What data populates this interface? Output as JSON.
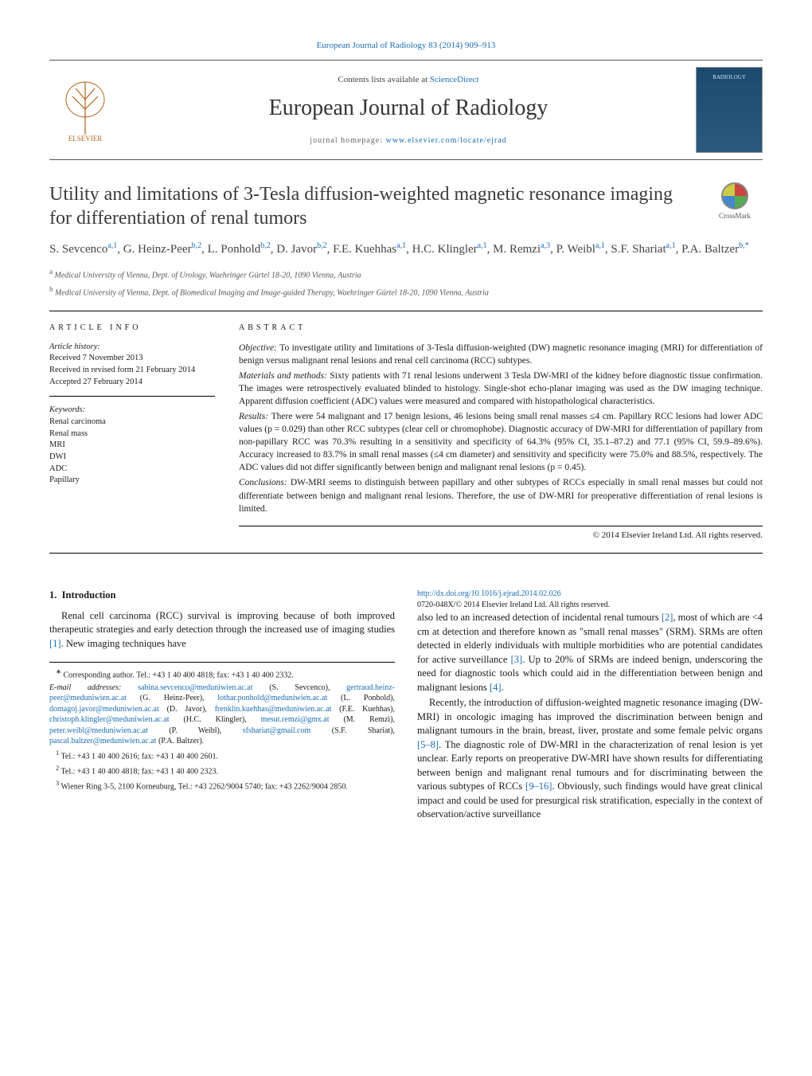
{
  "journal_ref": {
    "text_before": "",
    "link_text": "European Journal of Radiology 83 (2014) 909–913",
    "href": "#"
  },
  "masthead": {
    "contents_prefix": "Contents lists available at ",
    "contents_link": "ScienceDirect",
    "journal_title": "European Journal of Radiology",
    "homepage_prefix": "journal homepage: ",
    "homepage_link": "www.elsevier.com/locate/ejrad",
    "cover_label": "RADIOLOGY",
    "elsevier_label": "ELSEVIER"
  },
  "article": {
    "title": "Utility and limitations of 3-Tesla diffusion-weighted magnetic resonance imaging for differentiation of renal tumors",
    "crossmark_label": "CrossMark"
  },
  "authors_html": "S. Sevcenco<sup>a,1</sup>, G. Heinz-Peer<sup>b,2</sup>, L. Ponhold<sup>b,2</sup>, D. Javor<sup>b,2</sup>, F.E. Kuehhas<sup>a,1</sup>, H.C. Klingler<sup>a,1</sup>, M. Remzi<sup>a,3</sup>, P. Weibl<sup>a,1</sup>, S.F. Shariat<sup>a,1</sup>, P.A. Baltzer<sup>b,*</sup>",
  "affiliations": [
    {
      "sup": "a",
      "text": "Medical University of Vienna, Dept. of Urology, Waehringer Gürtel 18-20, 1090 Vienna, Austria"
    },
    {
      "sup": "b",
      "text": "Medical University of Vienna, Dept. of Biomedical Imaging and Image-guided Therapy, Waehringer Gürtel 18-20, 1090 Vienna, Austria"
    }
  ],
  "article_info": {
    "heading": "article info",
    "history_label": "Article history:",
    "history": [
      "Received 7 November 2013",
      "Received in revised form 21 February 2014",
      "Accepted 27 February 2014"
    ],
    "keywords_label": "Keywords:",
    "keywords": [
      "Renal carcinoma",
      "Renal mass",
      "MRI",
      "DWI",
      "ADC",
      "Papillary"
    ]
  },
  "abstract": {
    "heading": "abstract",
    "sections": [
      {
        "label": "Objective:",
        "text": "To investigate utility and limitations of 3-Tesla diffusion-weighted (DW) magnetic resonance imaging (MRI) for differentiation of benign versus malignant renal lesions and renal cell carcinoma (RCC) subtypes."
      },
      {
        "label": "Materials and methods:",
        "text": "Sixty patients with 71 renal lesions underwent 3 Tesla DW-MRI of the kidney before diagnostic tissue confirmation. The images were retrospectively evaluated blinded to histology. Single-shot echo-planar imaging was used as the DW imaging technique. Apparent diffusion coefficient (ADC) values were measured and compared with histopathological characteristics."
      },
      {
        "label": "Results:",
        "text": "There were 54 malignant and 17 benign lesions, 46 lesions being small renal masses ≤4 cm. Papillary RCC lesions had lower ADC values (p = 0.029) than other RCC subtypes (clear cell or chromophobe). Diagnostic accuracy of DW-MRI for differentiation of papillary from non-papillary RCC was 70.3% resulting in a sensitivity and specificity of 64.3% (95% CI, 35.1–87.2) and 77.1 (95% CI, 59.9–89.6%). Accuracy increased to 83.7% in small renal masses (≤4 cm diameter) and sensitivity and specificity were 75.0% and 88.5%, respectively. The ADC values did not differ significantly between benign and malignant renal lesions (p = 0.45)."
      },
      {
        "label": "Conclusions:",
        "text": "DW-MRI seems to distinguish between papillary and other subtypes of RCCs especially in small renal masses but could not differentiate between benign and malignant renal lesions. Therefore, the use of DW-MRI for preoperative differentiation of renal lesions is limited."
      }
    ],
    "copyright": "© 2014 Elsevier Ireland Ltd. All rights reserved."
  },
  "body": {
    "section_number": "1.",
    "section_title": "Introduction",
    "para1_a": "Renal cell carcinoma (RCC) survival is improving because of both improved therapeutic strategies and early detection through the increased use of imaging studies ",
    "ref1": "[1]",
    "para1_b": ". New imaging techniques have",
    "para2_a": "also led to an increased detection of incidental renal tumours ",
    "ref2": "[2]",
    "para2_b": ", most of which are <4 cm at detection and therefore known as \"small renal masses\" (SRM). SRMs are often detected in elderly individuals with multiple morbidities who are potential candidates for active surveillance ",
    "ref3": "[3]",
    "para2_c": ". Up to 20% of SRMs are indeed benign, underscoring the need for diagnostic tools which could aid in the differentiation between benign and malignant lesions ",
    "ref4": "[4]",
    "para2_d": ".",
    "para3_a": "Recently, the introduction of diffusion-weighted magnetic resonance imaging (DW-MRI) in oncologic imaging has improved the discrimination between benign and malignant tumours in the brain, breast, liver, prostate and some female pelvic organs ",
    "ref5": "[5–8]",
    "para3_b": ". The diagnostic role of DW-MRI in the characterization of renal lesion is yet unclear. Early reports on preoperative DW-MRI have shown results for differentiating between benign and malignant renal tumours and for discriminating between the various subtypes of RCCs ",
    "ref6": "[9–16]",
    "para3_c": ". Obviously, such findings would have great clinical impact and could be used for presurgical risk stratification, especially in the context of observation/active surveillance"
  },
  "footnotes": {
    "corr_label": "∗",
    "corr_text": "Corresponding author. Tel.: +43 1 40 400 4818; fax: +43 1 40 400 2332.",
    "email_label": "E-mail addresses:",
    "emails": [
      {
        "addr": "sabina.sevcenco@meduniwien.ac.at",
        "name": "(S. Sevcenco)"
      },
      {
        "addr": "gertraud.heinz-peer@meduniwien.ac.at",
        "name": "(G. Heinz-Peer)"
      },
      {
        "addr": "lothar.ponhold@meduniwien.ac.at",
        "name": "(L. Ponhold)"
      },
      {
        "addr": "domagoj.javor@meduniwien.ac.at",
        "name": "(D. Javor)"
      },
      {
        "addr": "frenklin.kuehhas@meduniwien.ac.at",
        "name": "(F.E. Kuehhas)"
      },
      {
        "addr": "christoph.klingler@meduniwien.ac.at",
        "name": "(H.C. Klingler)"
      },
      {
        "addr": "mesut.remzi@gmx.at",
        "name": "(M. Remzi)"
      },
      {
        "addr": "peter.weibl@meduniwien.ac.at",
        "name": "(P. Weibl)"
      },
      {
        "addr": "sfshariat@gmail.com",
        "name": "(S.F. Shariat)"
      },
      {
        "addr": "pascal.baltzer@meduniwien.ac.at",
        "name": "(P.A. Baltzer)"
      }
    ],
    "notes": [
      {
        "sup": "1",
        "text": "Tel.: +43 1 40 400 2616; fax: +43 1 40 400 2601."
      },
      {
        "sup": "2",
        "text": "Tel.: +43 1 40 400 4818; fax: +43 1 40 400 2323."
      },
      {
        "sup": "3",
        "text": "Wiener Ring 3-5, 2100 Korneuburg, Tel.: +43 2262/9004 5740; fax: +43 2262/9004 2850."
      }
    ]
  },
  "footer": {
    "doi": "http://dx.doi.org/10.1016/j.ejrad.2014.02.026",
    "issn_line": "0720-048X/© 2014 Elsevier Ireland Ltd. All rights reserved."
  },
  "colors": {
    "link": "#1a6db5",
    "text": "#1a1a1a",
    "rule": "#000000"
  }
}
